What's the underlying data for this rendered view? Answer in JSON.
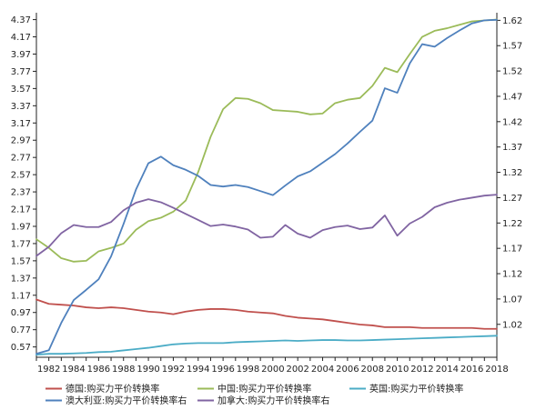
{
  "chart_data": {
    "type": "line",
    "title": "",
    "xlabel": "",
    "ylabel": "",
    "xlim": [
      1981,
      2018
    ],
    "x_ticks": [
      1982,
      1984,
      1986,
      1988,
      1990,
      1992,
      1994,
      1996,
      1998,
      2000,
      2002,
      2004,
      2006,
      2008,
      2010,
      2012,
      2014,
      2016,
      2018
    ],
    "y_left": {
      "ylim": [
        0.45,
        4.45
      ],
      "ticks": [
        0.57,
        0.77,
        0.97,
        1.17,
        1.37,
        1.57,
        1.77,
        1.97,
        2.17,
        2.37,
        2.57,
        2.77,
        2.97,
        3.17,
        3.37,
        3.57,
        3.77,
        3.97,
        4.17,
        4.37
      ],
      "tick_labels": [
        "0.57",
        "0.77",
        "0.97",
        "1.17",
        "1.37",
        "1.57",
        "1.77",
        "1.97",
        "2.17",
        "2.37",
        "2.57",
        "2.77",
        "2.97",
        "3.17",
        "3.37",
        "3.57",
        "3.77",
        "3.97",
        "4.17",
        "4.37"
      ]
    },
    "y_right": {
      "ylim": [
        0.955,
        1.635
      ],
      "ticks": [
        1.02,
        1.07,
        1.12,
        1.17,
        1.22,
        1.27,
        1.32,
        1.37,
        1.42,
        1.47,
        1.52,
        1.57,
        1.62
      ],
      "tick_labels": [
        "1.02",
        "1.07",
        "1.12",
        "1.17",
        "1.22",
        "1.27",
        "1.32",
        "1.37",
        "1.42",
        "1.47",
        "1.52",
        "1.57",
        "1.62"
      ]
    },
    "x": [
      1981,
      1982,
      1983,
      1984,
      1985,
      1986,
      1987,
      1988,
      1989,
      1990,
      1991,
      1992,
      1993,
      1994,
      1995,
      1996,
      1997,
      1998,
      1999,
      2000,
      2001,
      2002,
      2003,
      2004,
      2005,
      2006,
      2007,
      2008,
      2009,
      2010,
      2011,
      2012,
      2013,
      2014,
      2015,
      2016,
      2017,
      2018
    ],
    "series": [
      {
        "name": "德国:购买力平价转换率",
        "axis": "left",
        "color": "#c0504d",
        "values": [
          1.12,
          1.07,
          1.06,
          1.05,
          1.03,
          1.02,
          1.03,
          1.02,
          1.0,
          0.98,
          0.97,
          0.95,
          0.98,
          1.0,
          1.01,
          1.01,
          1.0,
          0.98,
          0.97,
          0.96,
          0.93,
          0.91,
          0.9,
          0.89,
          0.87,
          0.85,
          0.83,
          0.82,
          0.8,
          0.8,
          0.8,
          0.79,
          0.79,
          0.79,
          0.79,
          0.79,
          0.78,
          0.78
        ]
      },
      {
        "name": "中国:购买力平价转换率",
        "axis": "left",
        "color": "#9bbb59",
        "values": [
          1.82,
          1.72,
          1.6,
          1.56,
          1.57,
          1.68,
          1.72,
          1.77,
          1.93,
          2.03,
          2.07,
          2.14,
          2.27,
          2.6,
          3.01,
          3.33,
          3.46,
          3.45,
          3.4,
          3.32,
          3.31,
          3.3,
          3.27,
          3.28,
          3.4,
          3.44,
          3.46,
          3.6,
          3.81,
          3.76,
          3.97,
          4.17,
          4.24,
          4.27,
          4.31,
          4.35,
          4.36,
          4.37
        ]
      },
      {
        "name": "英国:购买力平价转换率",
        "axis": "left",
        "color": "#4bacc6",
        "values": [
          0.48,
          0.49,
          0.49,
          0.495,
          0.5,
          0.51,
          0.515,
          0.53,
          0.545,
          0.56,
          0.58,
          0.6,
          0.61,
          0.615,
          0.615,
          0.615,
          0.625,
          0.63,
          0.635,
          0.64,
          0.645,
          0.64,
          0.645,
          0.65,
          0.65,
          0.645,
          0.645,
          0.65,
          0.655,
          0.66,
          0.665,
          0.67,
          0.675,
          0.68,
          0.685,
          0.69,
          0.695,
          0.7
        ]
      },
      {
        "name": "澳大利亚:购买力平价转换率右",
        "axis": "right",
        "color": "#4f81bd",
        "values": [
          0.962,
          0.969,
          1.023,
          1.068,
          1.088,
          1.109,
          1.154,
          1.218,
          1.286,
          1.338,
          1.351,
          1.334,
          1.325,
          1.313,
          1.295,
          1.292,
          1.295,
          1.291,
          1.283,
          1.275,
          1.294,
          1.312,
          1.322,
          1.339,
          1.356,
          1.377,
          1.4,
          1.422,
          1.486,
          1.477,
          1.535,
          1.573,
          1.568,
          1.585,
          1.6,
          1.614,
          1.62,
          1.621
        ]
      },
      {
        "name": "加拿大:购买力平价转换率右",
        "axis": "right",
        "color": "#8064a2",
        "values": [
          1.155,
          1.173,
          1.2,
          1.216,
          1.212,
          1.212,
          1.222,
          1.245,
          1.26,
          1.267,
          1.261,
          1.25,
          1.238,
          1.226,
          1.214,
          1.217,
          1.213,
          1.207,
          1.191,
          1.193,
          1.216,
          1.199,
          1.191,
          1.206,
          1.212,
          1.215,
          1.208,
          1.211,
          1.235,
          1.195,
          1.219,
          1.232,
          1.251,
          1.26,
          1.266,
          1.27,
          1.274,
          1.276
        ]
      }
    ]
  }
}
